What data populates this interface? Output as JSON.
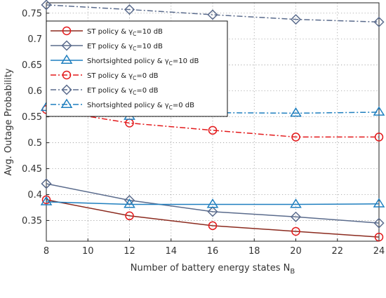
{
  "chart_data": {
    "type": "line",
    "xlabel": "Number of battery energy states N",
    "xlabel_sub": "B",
    "ylabel": "Avg. Outage Probability",
    "xlim": [
      8,
      24
    ],
    "ylim": [
      0.31,
      0.77
    ],
    "xticks": [
      "8",
      "10",
      "12",
      "14",
      "16",
      "18",
      "20",
      "22",
      "24"
    ],
    "yticks": [
      "0.35",
      "0.4",
      "0.45",
      "0.5",
      "0.55",
      "0.6",
      "0.65",
      "0.7",
      "0.75"
    ],
    "grid": true,
    "legend_position": "top-left",
    "series": [
      {
        "name": "ST policy & γC=10 dB",
        "legend_prefix": "ST policy & γ",
        "legend_sub": "C",
        "legend_suffix": "=10 dB",
        "x": [
          8,
          12,
          16,
          20,
          24
        ],
        "values": [
          0.39,
          0.359,
          0.34,
          0.329,
          0.318
        ],
        "color": "#8b2a1e",
        "marker_color": "#e31a1c",
        "marker": "circle",
        "dash": "solid"
      },
      {
        "name": "ET policy & γC=10 dB",
        "legend_prefix": "ET policy & γ",
        "legend_sub": "C",
        "legend_suffix": "=10 dB",
        "x": [
          8,
          12,
          16,
          20,
          24
        ],
        "values": [
          0.421,
          0.389,
          0.367,
          0.357,
          0.345
        ],
        "color": "#5a6b8c",
        "marker_color": "#5a6b8c",
        "marker": "diamond",
        "dash": "solid"
      },
      {
        "name": "Shortsighted policy & γC=10 dB",
        "legend_prefix": "Shortsighted policy & γ",
        "legend_sub": "C",
        "legend_suffix": "=10 dB",
        "x": [
          8,
          12,
          16,
          20,
          24
        ],
        "values": [
          0.386,
          0.381,
          0.381,
          0.381,
          0.382
        ],
        "color": "#1f7fbf",
        "marker_color": "#1f7fbf",
        "marker": "triangle",
        "dash": "solid"
      },
      {
        "name": "ST policy & γC=0 dB",
        "legend_prefix": "ST policy & γ",
        "legend_sub": "C",
        "legend_suffix": "=0 dB",
        "x": [
          8,
          12,
          16,
          20,
          24
        ],
        "values": [
          0.564,
          0.538,
          0.524,
          0.511,
          0.511
        ],
        "color": "#e31a1c",
        "marker_color": "#e31a1c",
        "marker": "circle",
        "dash": "dashdot"
      },
      {
        "name": "ET policy & γC=0 dB",
        "legend_prefix": "ET policy & γ",
        "legend_sub": "C",
        "legend_suffix": "=0 dB",
        "x": [
          8,
          12,
          16,
          20,
          24
        ],
        "values": [
          0.766,
          0.757,
          0.747,
          0.738,
          0.733
        ],
        "color": "#5a6b8c",
        "marker_color": "#5a6b8c",
        "marker": "diamond",
        "dash": "dashdot"
      },
      {
        "name": "Shortsighted policy & γC=0 dB",
        "legend_prefix": "Shortsighted policy & γ",
        "legend_sub": "C",
        "legend_suffix": "=0 dB",
        "x": [
          8,
          12,
          16,
          20,
          24
        ],
        "values": [
          0.568,
          0.551,
          0.558,
          0.557,
          0.559
        ],
        "color": "#1f7fbf",
        "marker_color": "#1f7fbf",
        "marker": "triangle",
        "dash": "dashdot"
      }
    ]
  }
}
